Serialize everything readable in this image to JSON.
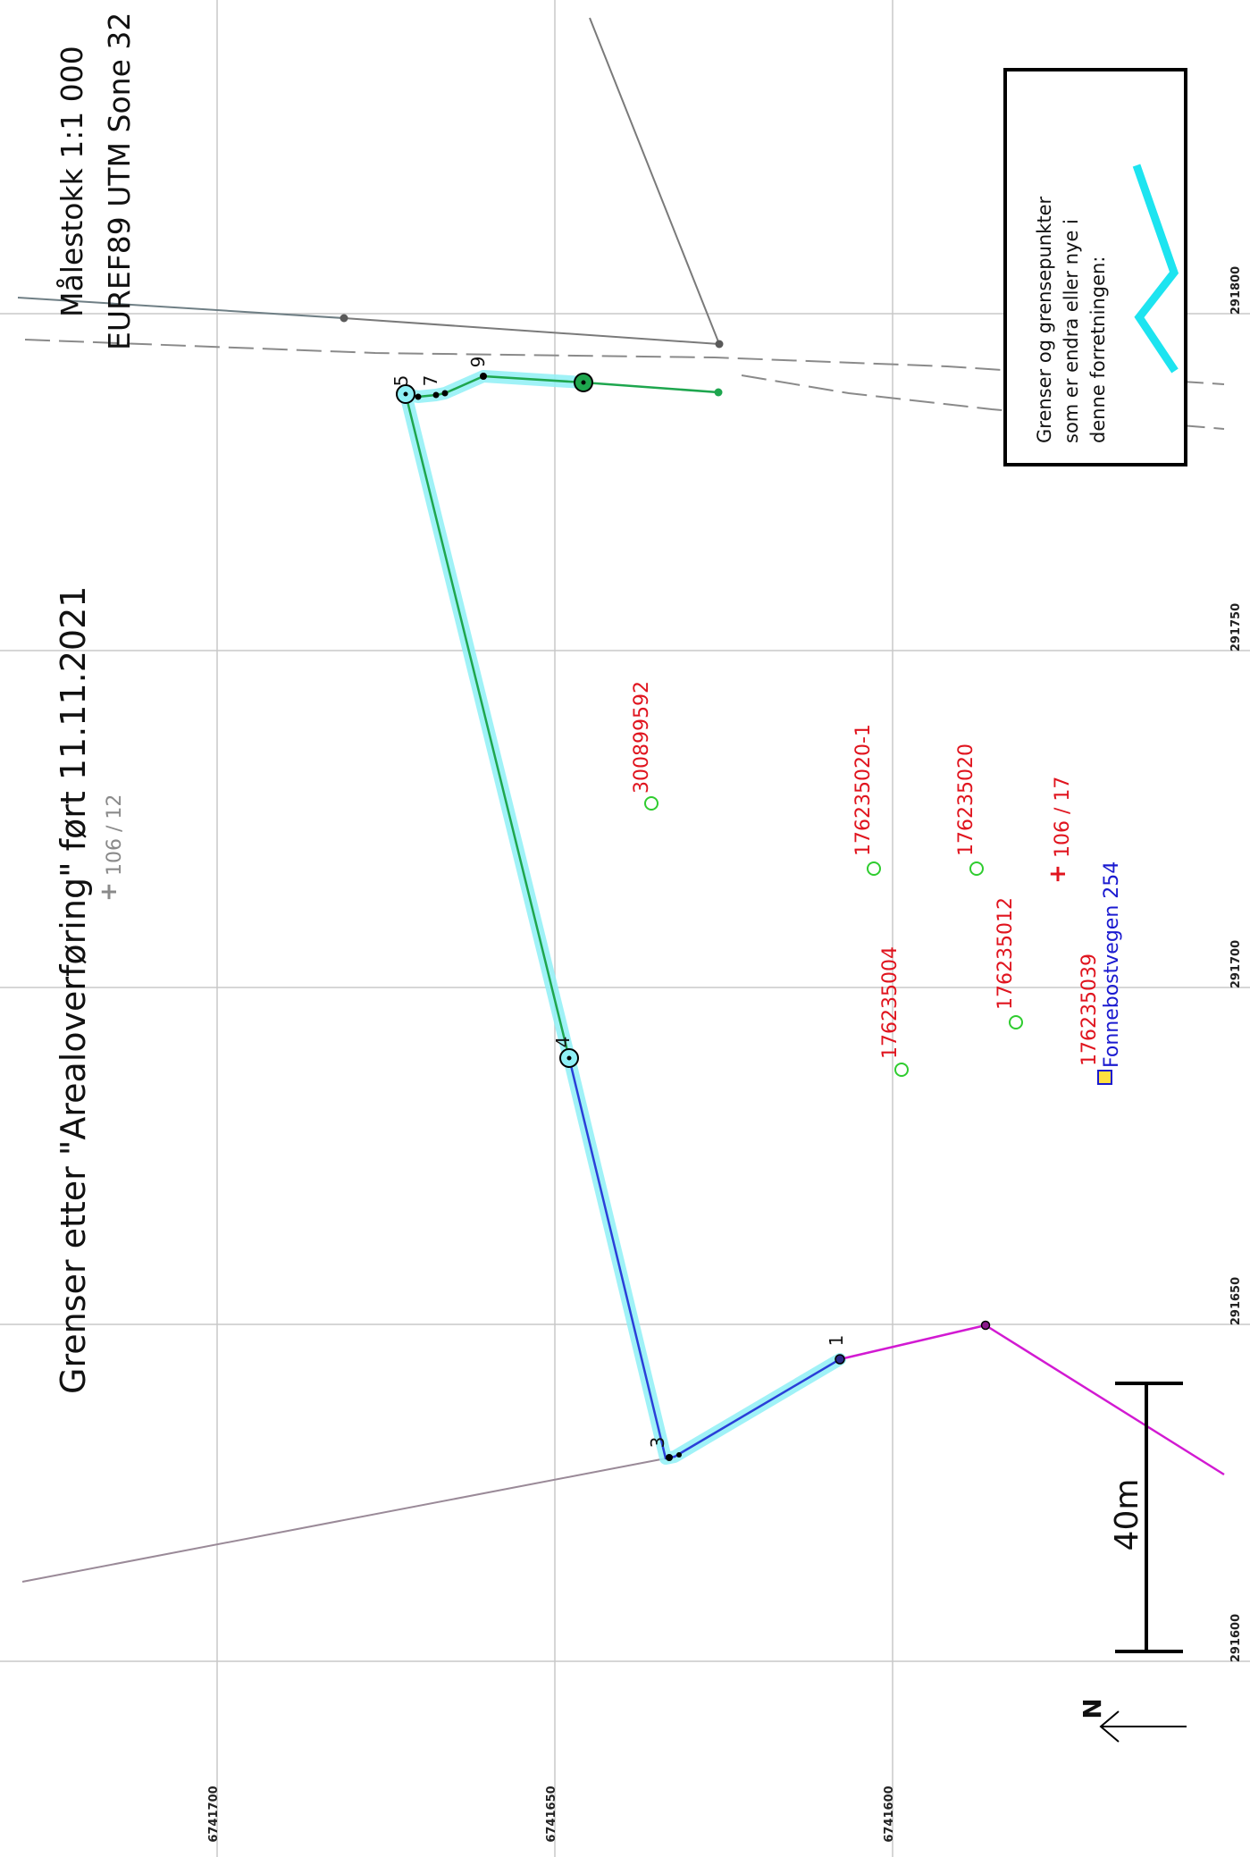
{
  "title": "Grenser etter \"Arealoverføring\" ført 11.11.2021",
  "scale": {
    "text": "Målestokk 1:1 000",
    "datum": "EUREF89 UTM Sone 32"
  },
  "legend": {
    "line1": "Grenser og grensepunkter",
    "line2": "som er endra eller nye i",
    "line3": "denne forretningen:",
    "symbol_color": "#1de4f0"
  },
  "scalebar": {
    "label": "40m"
  },
  "north": {
    "label": "N"
  },
  "grid": {
    "x_labels": [
      "291600",
      "291650",
      "291700",
      "291750",
      "291800"
    ],
    "y_labels": [
      "6741700",
      "6741650",
      "6741600"
    ]
  },
  "parcels": {
    "gray": "106 / 12",
    "red": "106 / 17"
  },
  "buildings": {
    "b1": "300899592",
    "b2": "176235020-1",
    "b3": "176235020",
    "b4": "176235004",
    "b5": "176235012",
    "b6": "176235039"
  },
  "address": "Fonnebostvegen 254",
  "point_labels": {
    "p1": "1",
    "p3": "3",
    "p4": "4",
    "p5": "5",
    "p7": "7",
    "p9": "9"
  },
  "colors": {
    "highlight": "#1de4f0",
    "blue_line": "#2a3fd8",
    "green_line": "#1ea64e",
    "magenta_line": "#d21ad2",
    "gray_line": "#7a7a7a",
    "mauve_line": "#9a8a98",
    "red_text": "#e0141e",
    "address_blue": "#1a1ad0",
    "building_green": "#2fcc2f",
    "grid": "#c8c8c8"
  }
}
